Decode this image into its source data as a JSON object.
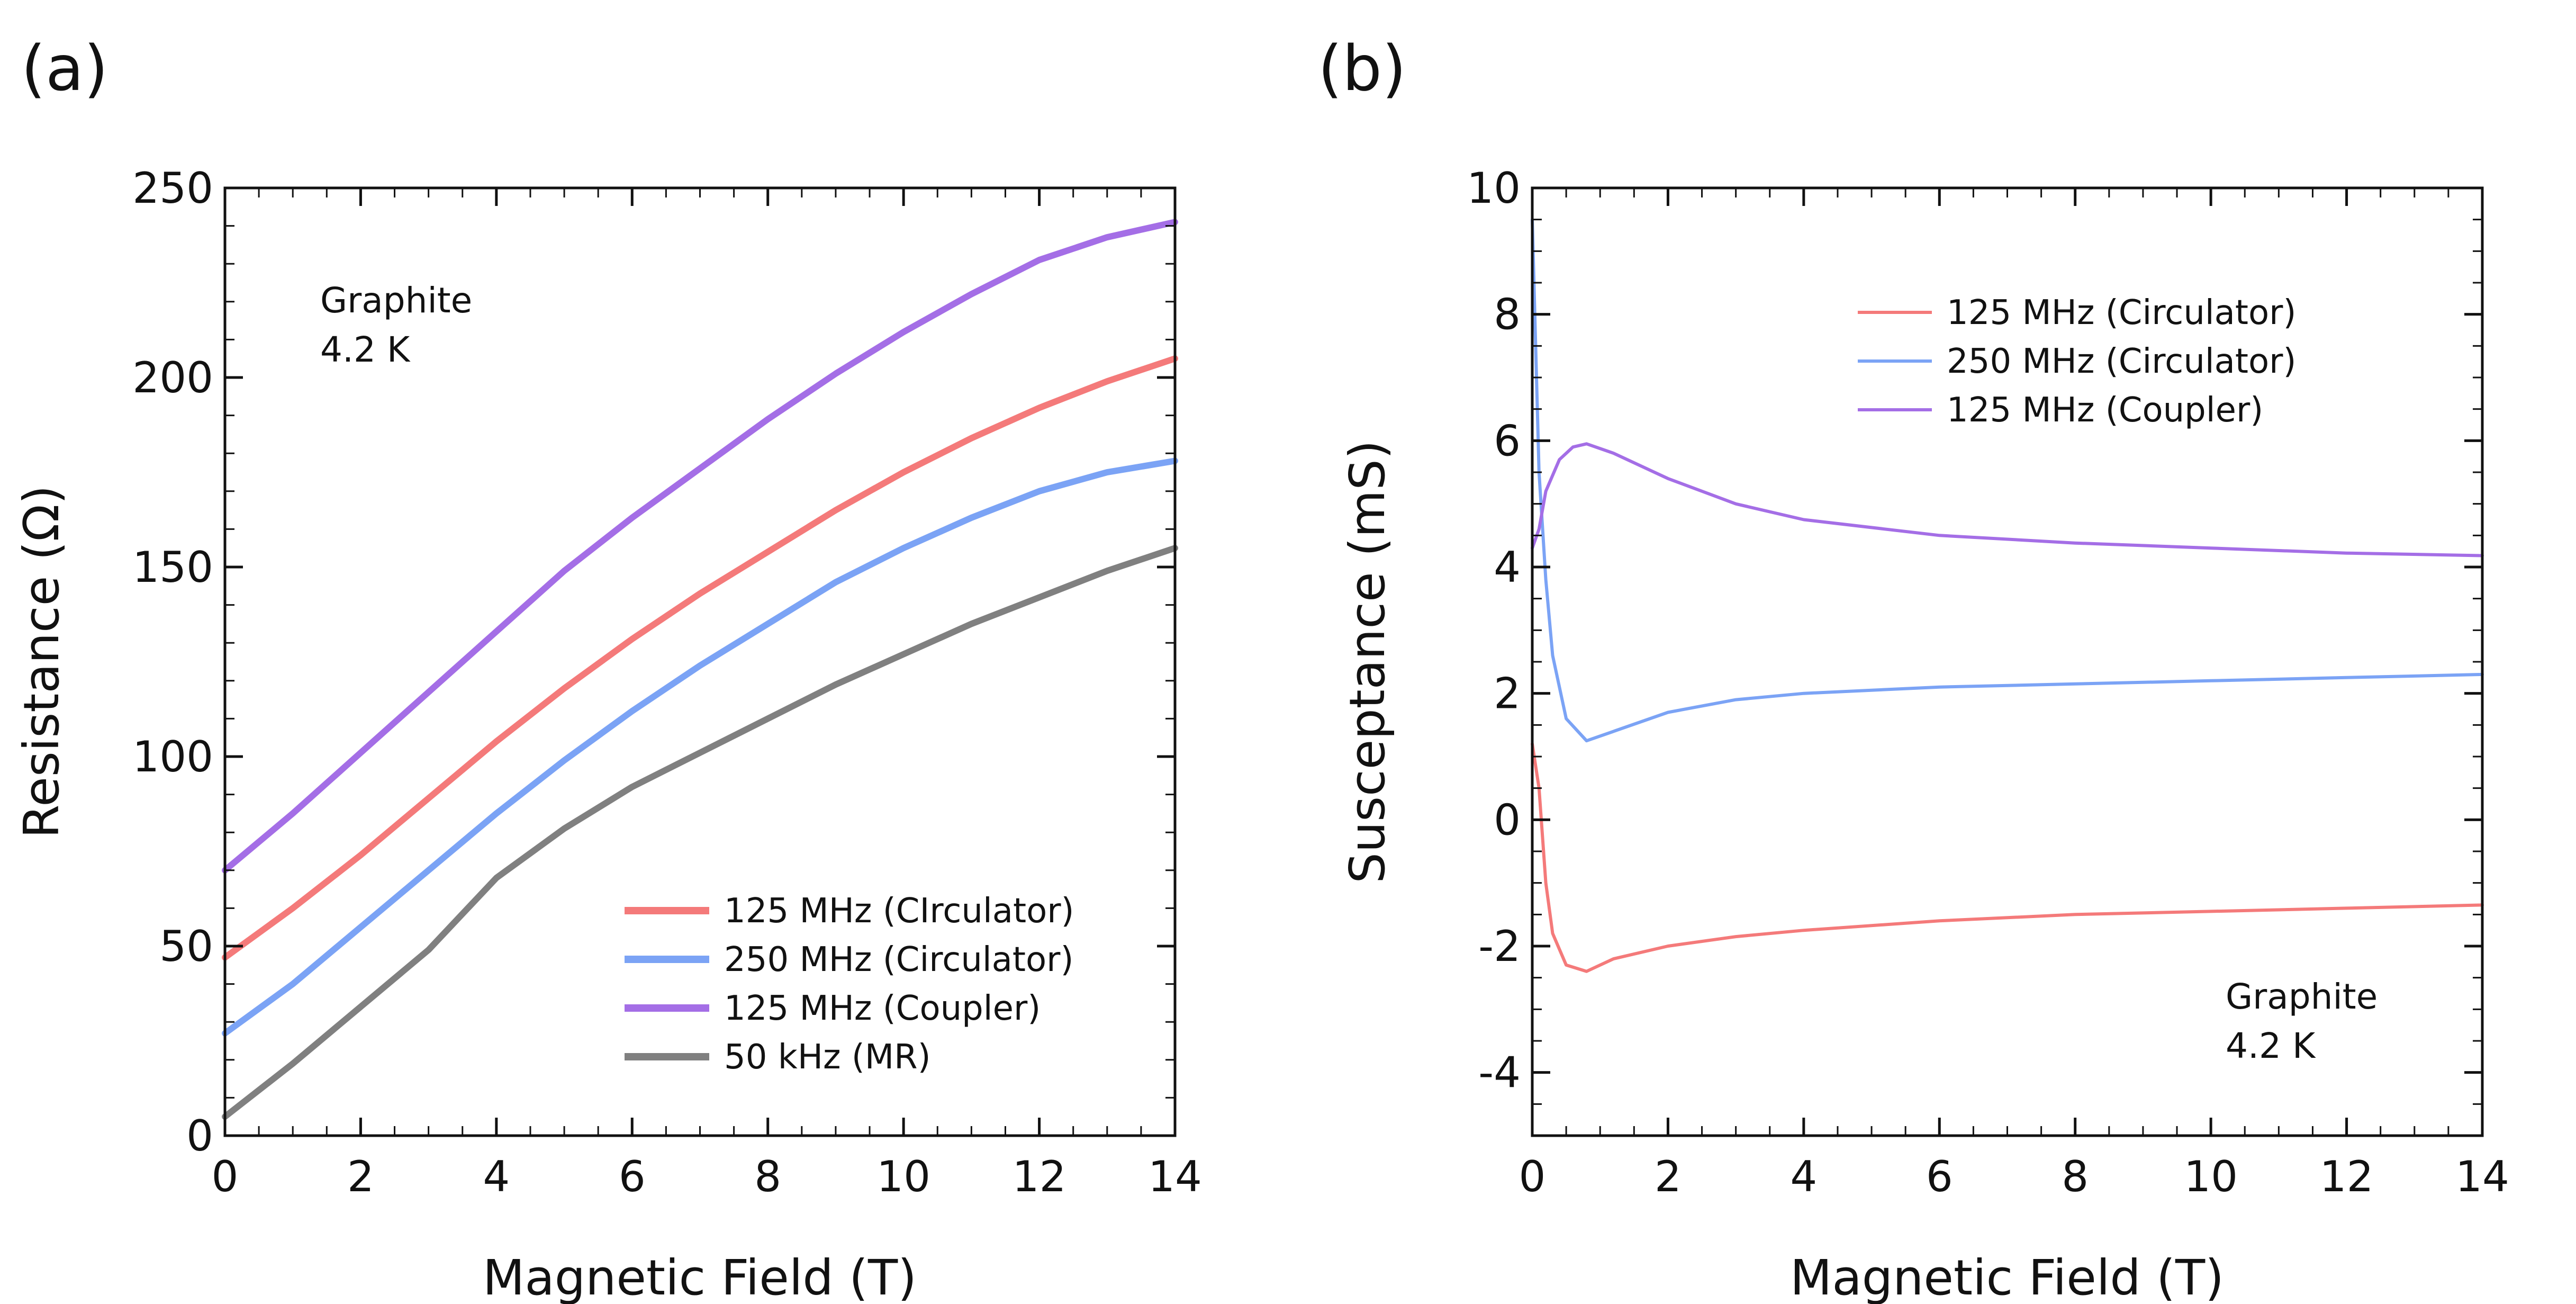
{
  "chart_data": [
    {
      "panel_label": "(a)",
      "type": "line",
      "xlabel": "Magnetic Field (T)",
      "ylabel": "Resistance (Ω)",
      "xlim": [
        0,
        14
      ],
      "ylim": [
        0,
        250
      ],
      "xticks": [
        "0",
        "2",
        "4",
        "6",
        "8",
        "10",
        "12",
        "14"
      ],
      "yticks": [
        "0",
        "50",
        "100",
        "150",
        "200",
        "250"
      ],
      "annotation": [
        "Graphite",
        "4.2 K"
      ],
      "legend_position": "bottom-right",
      "series": [
        {
          "name": "125 MHz (CIrculator)",
          "color": "#f47a7a",
          "x": [
            0,
            1,
            2,
            3,
            4,
            5,
            6,
            7,
            8,
            9,
            10,
            11,
            12,
            13,
            14
          ],
          "y": [
            47,
            60,
            74,
            89,
            104,
            118,
            131,
            143,
            154,
            165,
            175,
            184,
            192,
            199,
            205
          ]
        },
        {
          "name": "250 MHz (Circulator)",
          "color": "#7ba3f5",
          "x": [
            0,
            1,
            2,
            3,
            4,
            5,
            6,
            7,
            8,
            9,
            10,
            11,
            12,
            13,
            14
          ],
          "y": [
            27,
            40,
            55,
            70,
            85,
            99,
            112,
            124,
            135,
            146,
            155,
            163,
            170,
            175,
            178
          ]
        },
        {
          "name": "125 MHz (Coupler)",
          "color": "#a46ee6",
          "x": [
            0,
            1,
            2,
            3,
            4,
            5,
            6,
            7,
            8,
            9,
            10,
            11,
            12,
            13,
            14
          ],
          "y": [
            70,
            85,
            101,
            117,
            133,
            149,
            163,
            176,
            189,
            201,
            212,
            222,
            231,
            237,
            241
          ]
        },
        {
          "name": "50 kHz (MR)",
          "color": "#808080",
          "x": [
            0,
            1,
            2,
            3,
            4,
            5,
            6,
            7,
            8,
            9,
            10,
            11,
            12,
            13,
            14
          ],
          "y": [
            5,
            19,
            34,
            49,
            68,
            81,
            92,
            101,
            110,
            119,
            127,
            135,
            142,
            149,
            155
          ]
        }
      ]
    },
    {
      "panel_label": "(b)",
      "type": "line",
      "xlabel": "Magnetic Field (T)",
      "ylabel": "Susceptance (mS)",
      "xlim": [
        0,
        14
      ],
      "ylim": [
        -5,
        10
      ],
      "xticks": [
        "0",
        "2",
        "4",
        "6",
        "8",
        "10",
        "12",
        "14"
      ],
      "yticks": [
        "-4",
        "-2",
        "0",
        "2",
        "4",
        "6",
        "8",
        "10"
      ],
      "annotation": [
        "Graphite",
        "4.2 K"
      ],
      "legend_position": "top-right",
      "series": [
        {
          "name": "125 MHz (Circulator)",
          "color": "#f47a7a",
          "x": [
            0,
            0.1,
            0.2,
            0.3,
            0.5,
            0.8,
            1.2,
            2,
            3,
            4,
            6,
            8,
            10,
            12,
            14
          ],
          "y": [
            1.2,
            0.5,
            -1.0,
            -1.8,
            -2.3,
            -2.4,
            -2.2,
            -2.0,
            -1.85,
            -1.75,
            -1.6,
            -1.5,
            -1.45,
            -1.4,
            -1.35
          ]
        },
        {
          "name": "250 MHz (Circulator)",
          "color": "#7ba3f5",
          "x": [
            0,
            0.05,
            0.1,
            0.2,
            0.3,
            0.5,
            0.8,
            1.2,
            2,
            3,
            4,
            6,
            8,
            10,
            12,
            14
          ],
          "y": [
            9.5,
            7.5,
            5.5,
            3.8,
            2.6,
            1.6,
            1.25,
            1.4,
            1.7,
            1.9,
            2.0,
            2.1,
            2.15,
            2.2,
            2.25,
            2.3
          ]
        },
        {
          "name": "125 MHz (Coupler)",
          "color": "#a46ee6",
          "x": [
            0,
            0.1,
            0.2,
            0.4,
            0.6,
            0.8,
            1.2,
            2,
            3,
            4,
            6,
            8,
            10,
            12,
            14
          ],
          "y": [
            4.3,
            4.6,
            5.2,
            5.7,
            5.9,
            5.95,
            5.8,
            5.4,
            5.0,
            4.75,
            4.5,
            4.38,
            4.3,
            4.22,
            4.18
          ]
        }
      ]
    }
  ]
}
